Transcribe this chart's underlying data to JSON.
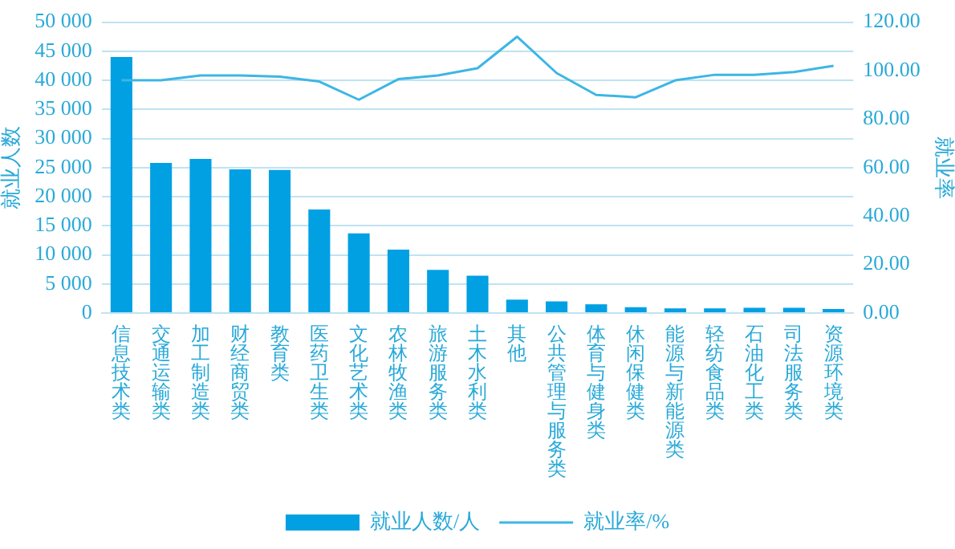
{
  "chart_data": {
    "type": "bar",
    "categories": [
      "信息技术类",
      "交通运输类",
      "加工制造类",
      "财经商贸类",
      "教育类",
      "医药卫生类",
      "文化艺术类",
      "农林牧渔类",
      "旅游服务类",
      "土木水利类",
      "其他",
      "公共管理与服务类",
      "体育与健身类",
      "休闲保健类",
      "能源与新能源类",
      "轻纺食品类",
      "石油化工类",
      "司法服务类",
      "资源环境类"
    ],
    "series": [
      {
        "name": "就业人数/人",
        "color": "#00a0e3",
        "values": [
          44000,
          25800,
          26500,
          24700,
          24600,
          17800,
          13700,
          10900,
          7400,
          6400,
          2300,
          2000,
          1500,
          1000,
          800,
          800,
          900,
          900,
          700
        ]
      },
      {
        "name": "就业率/%",
        "type": "line",
        "axis": "y2",
        "color": "#3db6e4",
        "values": [
          96,
          96,
          98,
          98,
          97.5,
          95.5,
          88,
          96.5,
          98,
          101,
          114,
          99,
          90,
          89,
          96,
          98.3,
          98.3,
          99.4,
          102
        ]
      }
    ],
    "ylabel": "就业人数",
    "y2label": "就业率",
    "ylim": [
      0,
      50000
    ],
    "yticks": [
      {
        "value": 0,
        "label": "0"
      },
      {
        "value": 5000,
        "label": "5 000"
      },
      {
        "value": 10000,
        "label": "10 000"
      },
      {
        "value": 15000,
        "label": "15 000"
      },
      {
        "value": 20000,
        "label": "20 000"
      },
      {
        "value": 25000,
        "label": "25 000"
      },
      {
        "value": 30000,
        "label": "30 000"
      },
      {
        "value": 35000,
        "label": "35 000"
      },
      {
        "value": 40000,
        "label": "40 000"
      },
      {
        "value": 45000,
        "label": "45 000"
      },
      {
        "value": 50000,
        "label": "50 000"
      }
    ],
    "y2lim": [
      0,
      120
    ],
    "y2ticks": [
      {
        "value": 0,
        "label": "0.00"
      },
      {
        "value": 20,
        "label": "20.00"
      },
      {
        "value": 40,
        "label": "40.00"
      },
      {
        "value": 60,
        "label": "60.00"
      },
      {
        "value": 80,
        "label": "80.00"
      },
      {
        "value": 100,
        "label": "100.00"
      },
      {
        "value": 120,
        "label": "120.00"
      }
    ],
    "grid": "y",
    "legend": "bottom",
    "marker": "none",
    "line_style": "solid"
  }
}
